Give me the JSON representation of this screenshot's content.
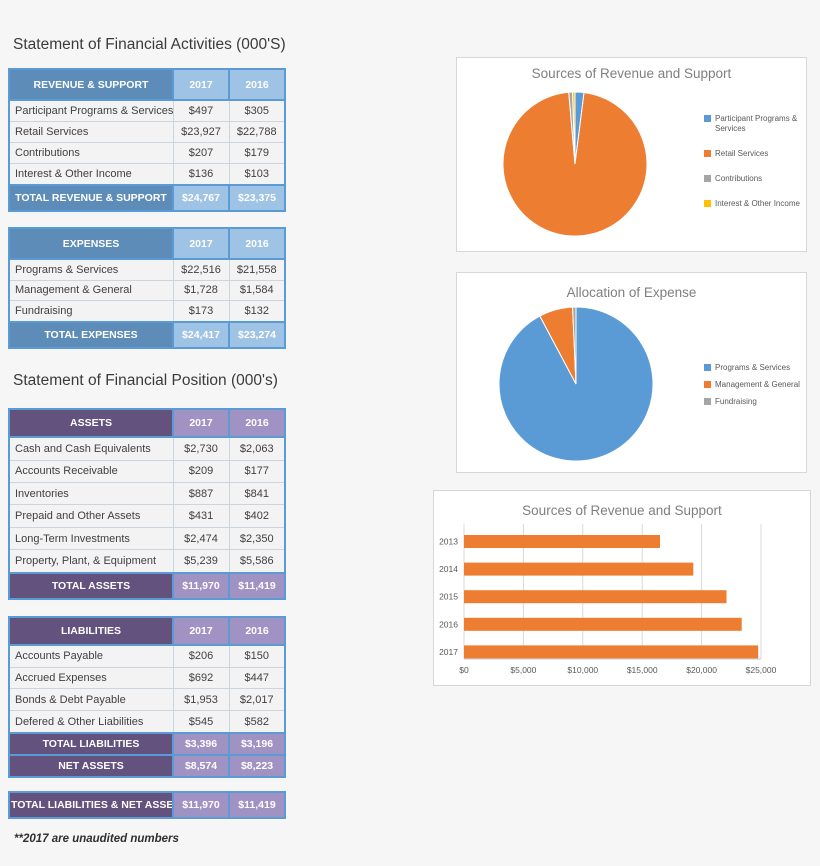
{
  "page": {
    "section1_title": "Statement of Financial Activities (000'S)",
    "section2_title": "Statement of Financial Position (000's)",
    "footnote": "**2017 are unaudited numbers"
  },
  "colors": {
    "blue_header": "#5d8cb8",
    "blue_light": "#9fc3e4",
    "purple_header": "#63517e",
    "purple_light": "#a192c4",
    "table_border": "#5b9bd5",
    "accent_blue": "#5b9bd5",
    "accent_orange": "#ed7d31",
    "accent_gray": "#a5a5a5",
    "accent_yellow": "#ffc000",
    "axis_text": "#595959",
    "gridline": "#d9d9d9"
  },
  "tables": [
    {
      "id": "t-revenue",
      "theme": "blue",
      "header": [
        "REVENUE & SUPPORT",
        "2017",
        "2016"
      ],
      "rows": [
        [
          "Participant Programs & Services",
          "$497",
          "$305"
        ],
        [
          "Retail Services",
          "$23,927",
          "$22,788"
        ],
        [
          "Contributions",
          "$207",
          "$179"
        ],
        [
          "Interest & Other Income",
          "$136",
          "$103"
        ]
      ],
      "totals": [
        [
          "TOTAL REVENUE & SUPPORT",
          "$24,767",
          "$23,375"
        ]
      ]
    },
    {
      "id": "t-expenses",
      "theme": "blue",
      "header": [
        "EXPENSES",
        "2017",
        "2016"
      ],
      "rows": [
        [
          "Programs & Services",
          "$22,516",
          "$21,558"
        ],
        [
          "Management & General",
          "$1,728",
          "$1,584"
        ],
        [
          "Fundraising",
          "$173",
          "$132"
        ]
      ],
      "totals": [
        [
          "TOTAL EXPENSES",
          "$24,417",
          "$23,274"
        ]
      ]
    },
    {
      "id": "t-assets",
      "theme": "purple",
      "header": [
        "ASSETS",
        "2017",
        "2016"
      ],
      "rows": [
        [
          "Cash and Cash Equivalents",
          "$2,730",
          "$2,063"
        ],
        [
          "Accounts Receivable",
          "$209",
          "$177"
        ],
        [
          "Inventories",
          "$887",
          "$841"
        ],
        [
          "Prepaid and Other Assets",
          "$431",
          "$402"
        ],
        [
          "Long-Term Investments",
          "$2,474",
          "$2,350"
        ],
        [
          "Property, Plant, & Equipment",
          "$5,239",
          "$5,586"
        ]
      ],
      "totals": [
        [
          "TOTAL ASSETS",
          "$11,970",
          "$11,419"
        ]
      ]
    },
    {
      "id": "t-liabilities",
      "theme": "purple",
      "header": [
        "LIABILITIES",
        "2017",
        "2016"
      ],
      "rows": [
        [
          "Accounts Payable",
          "$206",
          "$150"
        ],
        [
          "Accrued Expenses",
          "$692",
          "$447"
        ],
        [
          "Bonds & Debt Payable",
          "$1,953",
          "$2,017"
        ],
        [
          "Defered & Other Liabilities",
          "$545",
          "$582"
        ]
      ],
      "totals": [
        [
          "TOTAL LIABILITIES",
          "$3,396",
          "$3,196"
        ],
        [
          "NET ASSETS",
          "$8,574",
          "$8,223"
        ]
      ]
    },
    {
      "id": "t-grand",
      "theme": "purple",
      "header": null,
      "rows": [],
      "totals": [
        [
          "TOTAL LIABILITIES & NET ASSETS",
          "$11,970",
          "$11,419"
        ]
      ]
    }
  ],
  "chart_data": [
    {
      "type": "pie",
      "title": "Sources of Revenue and Support",
      "labels": [
        "Participant Programs & Services",
        "Retail Services",
        "Contributions",
        "Interest & Other Income"
      ],
      "values": [
        497,
        23927,
        207,
        136
      ],
      "colors": [
        "#5b9bd5",
        "#ed7d31",
        "#a5a5a5",
        "#ffc000"
      ],
      "legend_position": "right"
    },
    {
      "type": "pie",
      "title": "Allocation of Expense",
      "labels": [
        "Programs & Services",
        "Management & General",
        "Fundraising"
      ],
      "values": [
        22516,
        1728,
        173
      ],
      "colors": [
        "#5b9bd5",
        "#ed7d31",
        "#a5a5a5"
      ],
      "legend_position": "right"
    },
    {
      "type": "bar",
      "orientation": "horizontal",
      "title": "Sources of Revenue and Support",
      "categories": [
        "2013",
        "2014",
        "2015",
        "2016",
        "2017"
      ],
      "values": [
        16500,
        19300,
        22100,
        23375,
        24767
      ],
      "bar_color": "#ed7d31",
      "xlim": [
        0,
        25000
      ],
      "xticks": [
        "$0",
        "$5,000",
        "$10,000",
        "$15,000",
        "$20,000",
        "$25,000"
      ],
      "grid": true,
      "legend_position": "none"
    }
  ]
}
